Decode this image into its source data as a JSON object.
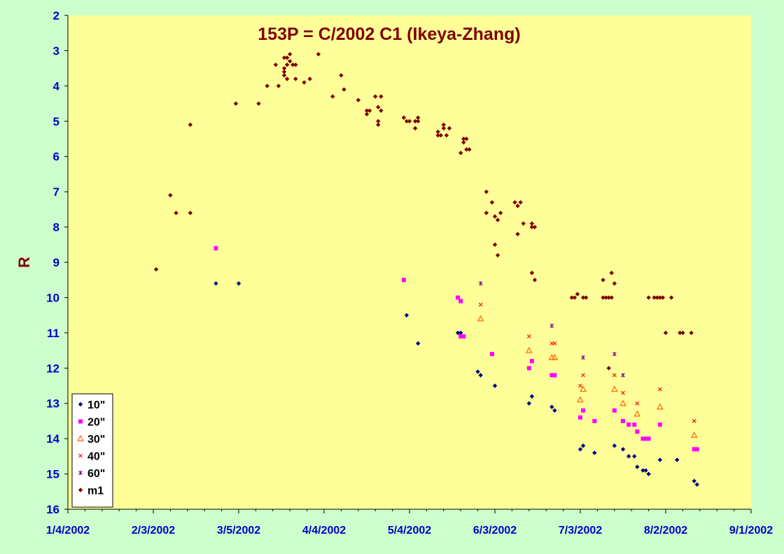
{
  "chart_data": {
    "type": "scatter",
    "title": "153P = C/2002 C1 (Ikeya-Zhang)",
    "ylabel": "R",
    "xlabel": "",
    "x_type": "date",
    "xlim": [
      "2002-01-04",
      "2002-09-01"
    ],
    "ylim": [
      16,
      2
    ],
    "y_inverted": true,
    "x_ticks": [
      {
        "date": "2002-01-04",
        "label": "1/4/2002"
      },
      {
        "date": "2002-02-03",
        "label": "2/3/2002"
      },
      {
        "date": "2002-03-05",
        "label": "3/5/2002"
      },
      {
        "date": "2002-04-04",
        "label": "4/4/2002"
      },
      {
        "date": "2002-05-04",
        "label": "5/4/2002"
      },
      {
        "date": "2002-06-03",
        "label": "6/3/2002"
      },
      {
        "date": "2002-07-03",
        "label": "7/3/2002"
      },
      {
        "date": "2002-08-02",
        "label": "8/2/2002"
      },
      {
        "date": "2002-09-01",
        "label": "9/1/2002"
      }
    ],
    "y_ticks": [
      "2",
      "3",
      "4",
      "5",
      "6",
      "7",
      "8",
      "9",
      "10",
      "11",
      "12",
      "13",
      "14",
      "15",
      "16"
    ],
    "grid": false,
    "legend_position": "bottom-left",
    "plot_background": "#ffff99",
    "series": [
      {
        "name": "10\"",
        "marker": "diamond",
        "color": "#000080",
        "points": [
          [
            "2002-02-25",
            9.6
          ],
          [
            "2002-03-05",
            9.6
          ],
          [
            "2002-05-03",
            10.5
          ],
          [
            "2002-05-07",
            11.3
          ],
          [
            "2002-05-21",
            11.0
          ],
          [
            "2002-05-22",
            11.0
          ],
          [
            "2002-05-28",
            12.1
          ],
          [
            "2002-05-29",
            12.2
          ],
          [
            "2002-06-03",
            12.5
          ],
          [
            "2002-06-15",
            13.0
          ],
          [
            "2002-06-16",
            12.8
          ],
          [
            "2002-06-23",
            13.1
          ],
          [
            "2002-06-24",
            13.2
          ],
          [
            "2002-07-03",
            14.3
          ],
          [
            "2002-07-04",
            14.2
          ],
          [
            "2002-07-08",
            14.4
          ],
          [
            "2002-07-15",
            14.2
          ],
          [
            "2002-07-18",
            14.3
          ],
          [
            "2002-07-20",
            14.5
          ],
          [
            "2002-07-22",
            14.5
          ],
          [
            "2002-07-23",
            14.8
          ],
          [
            "2002-07-25",
            14.9
          ],
          [
            "2002-07-26",
            14.9
          ],
          [
            "2002-07-27",
            15.0
          ],
          [
            "2002-07-31",
            14.6
          ],
          [
            "2002-08-06",
            14.6
          ],
          [
            "2002-08-12",
            15.2
          ],
          [
            "2002-08-13",
            15.3
          ]
        ]
      },
      {
        "name": "20\"",
        "marker": "square",
        "color": "#ff00ff",
        "points": [
          [
            "2002-02-25",
            8.6
          ],
          [
            "2002-05-02",
            9.5
          ],
          [
            "2002-05-21",
            10.0
          ],
          [
            "2002-05-22",
            10.1
          ],
          [
            "2002-05-22",
            11.1
          ],
          [
            "2002-05-23",
            11.1
          ],
          [
            "2002-06-02",
            11.6
          ],
          [
            "2002-06-15",
            12.0
          ],
          [
            "2002-06-16",
            11.8
          ],
          [
            "2002-06-23",
            12.2
          ],
          [
            "2002-06-24",
            12.2
          ],
          [
            "2002-07-03",
            13.4
          ],
          [
            "2002-07-04",
            13.2
          ],
          [
            "2002-07-08",
            13.5
          ],
          [
            "2002-07-15",
            13.2
          ],
          [
            "2002-07-18",
            13.5
          ],
          [
            "2002-07-20",
            13.6
          ],
          [
            "2002-07-22",
            13.6
          ],
          [
            "2002-07-23",
            13.8
          ],
          [
            "2002-07-25",
            14.0
          ],
          [
            "2002-07-26",
            14.0
          ],
          [
            "2002-07-27",
            14.0
          ],
          [
            "2002-07-31",
            13.6
          ],
          [
            "2002-08-12",
            14.3
          ],
          [
            "2002-08-13",
            14.3
          ]
        ]
      },
      {
        "name": "30\"",
        "marker": "triangle",
        "color": "#ff6600",
        "points": [
          [
            "2002-05-29",
            10.6
          ],
          [
            "2002-06-15",
            11.5
          ],
          [
            "2002-06-23",
            11.7
          ],
          [
            "2002-06-24",
            11.7
          ],
          [
            "2002-07-03",
            12.9
          ],
          [
            "2002-07-04",
            12.6
          ],
          [
            "2002-07-15",
            12.6
          ],
          [
            "2002-07-18",
            13.0
          ],
          [
            "2002-07-23",
            13.3
          ],
          [
            "2002-07-31",
            13.1
          ],
          [
            "2002-08-12",
            13.9
          ]
        ]
      },
      {
        "name": "40\"",
        "marker": "x",
        "color": "#ff0000",
        "points": [
          [
            "2002-05-29",
            10.2
          ],
          [
            "2002-06-15",
            11.1
          ],
          [
            "2002-06-23",
            11.3
          ],
          [
            "2002-06-24",
            11.3
          ],
          [
            "2002-07-03",
            12.5
          ],
          [
            "2002-07-04",
            12.2
          ],
          [
            "2002-07-15",
            12.2
          ],
          [
            "2002-07-18",
            12.7
          ],
          [
            "2002-07-23",
            13.0
          ],
          [
            "2002-07-31",
            12.6
          ],
          [
            "2002-08-12",
            13.5
          ]
        ]
      },
      {
        "name": "60\"",
        "marker": "star",
        "color": "#800080",
        "points": [
          [
            "2002-05-29",
            9.6
          ],
          [
            "2002-06-23",
            10.8
          ],
          [
            "2002-07-04",
            11.7
          ],
          [
            "2002-07-15",
            11.6
          ],
          [
            "2002-07-18",
            12.2
          ]
        ]
      },
      {
        "name": "m1",
        "marker": "diamond",
        "color": "#800000",
        "points": [
          [
            "2002-02-04",
            9.2
          ],
          [
            "2002-02-09",
            7.1
          ],
          [
            "2002-02-11",
            7.6
          ],
          [
            "2002-02-16",
            5.1
          ],
          [
            "2002-02-16",
            7.6
          ],
          [
            "2002-03-04",
            4.5
          ],
          [
            "2002-03-12",
            4.5
          ],
          [
            "2002-03-15",
            4.0
          ],
          [
            "2002-03-18",
            3.4
          ],
          [
            "2002-03-19",
            4.0
          ],
          [
            "2002-03-21",
            3.2
          ],
          [
            "2002-03-21",
            3.5
          ],
          [
            "2002-03-21",
            3.6
          ],
          [
            "2002-03-21",
            3.7
          ],
          [
            "2002-03-22",
            3.8
          ],
          [
            "2002-03-22",
            3.4
          ],
          [
            "2002-03-22",
            3.2
          ],
          [
            "2002-03-23",
            3.1
          ],
          [
            "2002-03-23",
            3.3
          ],
          [
            "2002-03-24",
            3.4
          ],
          [
            "2002-03-25",
            3.8
          ],
          [
            "2002-03-25",
            3.4
          ],
          [
            "2002-03-28",
            3.9
          ],
          [
            "2002-03-30",
            3.8
          ],
          [
            "2002-04-02",
            3.1
          ],
          [
            "2002-04-07",
            4.3
          ],
          [
            "2002-04-10",
            3.7
          ],
          [
            "2002-04-11",
            4.1
          ],
          [
            "2002-04-16",
            4.4
          ],
          [
            "2002-04-19",
            4.8
          ],
          [
            "2002-04-19",
            4.7
          ],
          [
            "2002-04-20",
            4.7
          ],
          [
            "2002-04-22",
            4.3
          ],
          [
            "2002-04-23",
            5.0
          ],
          [
            "2002-04-23",
            5.1
          ],
          [
            "2002-04-23",
            4.6
          ],
          [
            "2002-04-24",
            4.7
          ],
          [
            "2002-04-24",
            4.3
          ],
          [
            "2002-05-02",
            4.9
          ],
          [
            "2002-05-03",
            5.0
          ],
          [
            "2002-05-04",
            5.0
          ],
          [
            "2002-05-06",
            5.2
          ],
          [
            "2002-05-06",
            5.0
          ],
          [
            "2002-05-07",
            4.9
          ],
          [
            "2002-05-07",
            5.0
          ],
          [
            "2002-05-14",
            5.3
          ],
          [
            "2002-05-14",
            5.4
          ],
          [
            "2002-05-15",
            5.4
          ],
          [
            "2002-05-16",
            5.1
          ],
          [
            "2002-05-16",
            5.2
          ],
          [
            "2002-05-17",
            5.4
          ],
          [
            "2002-05-18",
            5.2
          ],
          [
            "2002-05-22",
            5.9
          ],
          [
            "2002-05-23",
            5.5
          ],
          [
            "2002-05-23",
            5.6
          ],
          [
            "2002-05-24",
            5.5
          ],
          [
            "2002-05-24",
            5.8
          ],
          [
            "2002-05-25",
            5.8
          ],
          [
            "2002-05-31",
            7.0
          ],
          [
            "2002-05-31",
            7.6
          ],
          [
            "2002-06-02",
            7.3
          ],
          [
            "2002-06-03",
            8.5
          ],
          [
            "2002-06-03",
            7.7
          ],
          [
            "2002-06-04",
            7.8
          ],
          [
            "2002-06-04",
            8.8
          ],
          [
            "2002-06-05",
            7.6
          ],
          [
            "2002-06-10",
            7.3
          ],
          [
            "2002-06-11",
            7.4
          ],
          [
            "2002-06-11",
            8.2
          ],
          [
            "2002-06-12",
            7.3
          ],
          [
            "2002-06-13",
            7.9
          ],
          [
            "2002-06-16",
            7.9
          ],
          [
            "2002-06-16",
            8.0
          ],
          [
            "2002-06-16",
            9.3
          ],
          [
            "2002-06-17",
            8.0
          ],
          [
            "2002-06-17",
            9.5
          ],
          [
            "2002-06-30",
            10.0
          ],
          [
            "2002-07-01",
            10.0
          ],
          [
            "2002-07-02",
            9.9
          ],
          [
            "2002-07-04",
            10.0
          ],
          [
            "2002-07-05",
            10.0
          ],
          [
            "2002-07-11",
            10.0
          ],
          [
            "2002-07-11",
            9.5
          ],
          [
            "2002-07-12",
            10.0
          ],
          [
            "2002-07-13",
            10.0
          ],
          [
            "2002-07-13",
            12.0
          ],
          [
            "2002-07-14",
            10.0
          ],
          [
            "2002-07-14",
            9.3
          ],
          [
            "2002-07-15",
            9.6
          ],
          [
            "2002-07-27",
            10.0
          ],
          [
            "2002-07-29",
            10.0
          ],
          [
            "2002-07-30",
            10.0
          ],
          [
            "2002-07-31",
            10.0
          ],
          [
            "2002-08-01",
            10.0
          ],
          [
            "2002-08-02",
            11.0
          ],
          [
            "2002-08-04",
            10.0
          ],
          [
            "2002-08-07",
            11.0
          ],
          [
            "2002-08-08",
            11.0
          ],
          [
            "2002-08-11",
            11.0
          ]
        ]
      }
    ]
  }
}
